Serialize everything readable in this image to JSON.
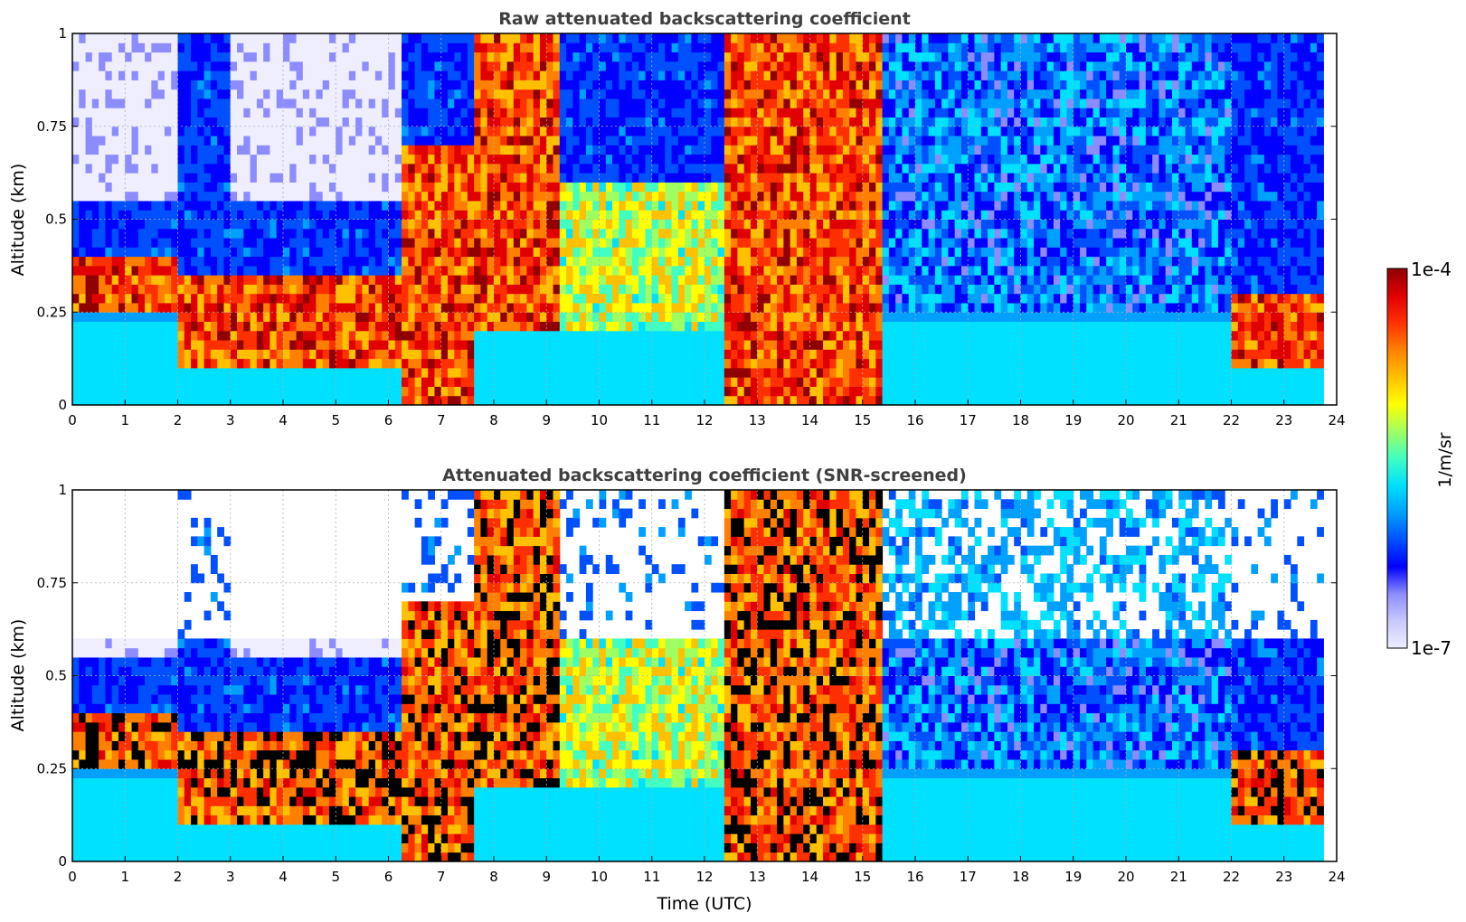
{
  "chart_data": [
    {
      "type": "heatmap",
      "title": "Raw attenuated backscattering coefficient",
      "xlabel": "",
      "ylabel": "Altitude (km)",
      "xlim": [
        0,
        24
      ],
      "ylim": [
        0,
        1
      ],
      "x_ticks": [
        "0",
        "1",
        "2",
        "3",
        "4",
        "5",
        "6",
        "7",
        "8",
        "9",
        "10",
        "11",
        "12",
        "13",
        "14",
        "15",
        "16",
        "17",
        "18",
        "19",
        "20",
        "21",
        "22",
        "23",
        "24"
      ],
      "y_ticks": [
        "0",
        "0.25",
        "0.5",
        "0.75",
        "1"
      ],
      "grid": true,
      "colormap": "jet",
      "color_scale": "log",
      "clim": [
        "1e-7",
        "1e-4"
      ],
      "features": [
        {
          "t_start": 0.0,
          "t_end": 2.0,
          "cloud_base_km": 0.25,
          "cloud_top_km": 0.4,
          "level": "high"
        },
        {
          "t_start": 2.0,
          "t_end": 6.3,
          "cloud_base_km": 0.1,
          "cloud_top_km": 0.35,
          "level": "high"
        },
        {
          "t_start": 6.3,
          "t_end": 7.6,
          "cloud_base_km": 0.0,
          "cloud_top_km": 0.7,
          "level": "high"
        },
        {
          "t_start": 7.6,
          "t_end": 9.3,
          "cloud_base_km": 0.2,
          "cloud_top_km": 1.0,
          "level": "high"
        },
        {
          "t_start": 9.3,
          "t_end": 12.4,
          "cloud_base_km": 0.2,
          "cloud_top_km": 0.6,
          "level": "medium"
        },
        {
          "t_start": 12.4,
          "t_end": 15.4,
          "cloud_base_km": 0.0,
          "cloud_top_km": 1.0,
          "level": "high"
        },
        {
          "t_start": 15.4,
          "t_end": 22.0,
          "cloud_base_km": 0.25,
          "cloud_top_km": 1.0,
          "level": "low"
        },
        {
          "t_start": 22.0,
          "t_end": 23.8,
          "cloud_base_km": 0.1,
          "cloud_top_km": 0.3,
          "level": "high"
        }
      ]
    },
    {
      "type": "heatmap",
      "title": "Attenuated backscattering coefficient (SNR-screened)",
      "xlabel": "Time (UTC)",
      "ylabel": "Altitude (km)",
      "xlim": [
        0,
        24
      ],
      "ylim": [
        0,
        1
      ],
      "x_ticks": [
        "0",
        "1",
        "2",
        "3",
        "4",
        "5",
        "6",
        "7",
        "8",
        "9",
        "10",
        "11",
        "12",
        "13",
        "14",
        "15",
        "16",
        "17",
        "18",
        "19",
        "20",
        "21",
        "22",
        "23",
        "24"
      ],
      "y_ticks": [
        "0",
        "0.25",
        "0.5",
        "0.75",
        "1"
      ],
      "grid": true,
      "colormap": "jet",
      "color_scale": "log",
      "clim": [
        "1e-7",
        "1e-4"
      ],
      "saturated_color": "#000000"
    }
  ],
  "colorbar": {
    "max_label": "1e-4",
    "min_label": "1e-7",
    "label": "1/m/sr",
    "colors": [
      "#eeeeff",
      "#c8c8ff",
      "#8c8cff",
      "#0000ff",
      "#0050ff",
      "#00a0ff",
      "#00e0ff",
      "#40ffc0",
      "#a0ff60",
      "#ffff00",
      "#ffc000",
      "#ff8000",
      "#ff3000",
      "#e00000",
      "#900000"
    ]
  }
}
